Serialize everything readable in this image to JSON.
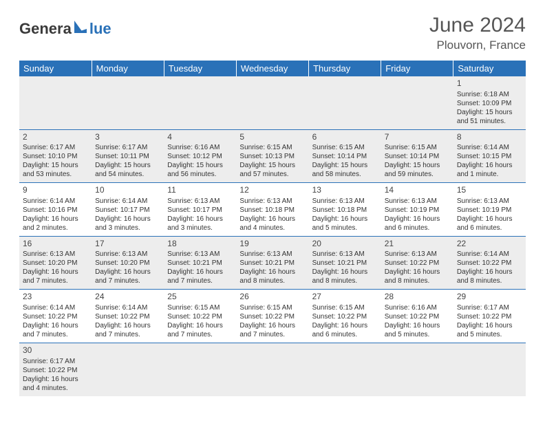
{
  "logo": {
    "textA": "Genera",
    "textB": "lue"
  },
  "header": {
    "title": "June 2024",
    "location": "Plouvorn, France"
  },
  "colors": {
    "headerBar": "#2a71b8",
    "shaded": "#ededed",
    "logoBlue": "#2a71b8",
    "textDark": "#3a3a3a"
  },
  "dayNames": [
    "Sunday",
    "Monday",
    "Tuesday",
    "Wednesday",
    "Thursday",
    "Friday",
    "Saturday"
  ],
  "weeks": [
    [
      null,
      null,
      null,
      null,
      null,
      null,
      {
        "n": "1",
        "sr": "Sunrise: 6:18 AM",
        "ss": "Sunset: 10:09 PM",
        "dl": "Daylight: 15 hours and 51 minutes."
      }
    ],
    [
      {
        "n": "2",
        "sr": "Sunrise: 6:17 AM",
        "ss": "Sunset: 10:10 PM",
        "dl": "Daylight: 15 hours and 53 minutes."
      },
      {
        "n": "3",
        "sr": "Sunrise: 6:17 AM",
        "ss": "Sunset: 10:11 PM",
        "dl": "Daylight: 15 hours and 54 minutes."
      },
      {
        "n": "4",
        "sr": "Sunrise: 6:16 AM",
        "ss": "Sunset: 10:12 PM",
        "dl": "Daylight: 15 hours and 56 minutes."
      },
      {
        "n": "5",
        "sr": "Sunrise: 6:15 AM",
        "ss": "Sunset: 10:13 PM",
        "dl": "Daylight: 15 hours and 57 minutes."
      },
      {
        "n": "6",
        "sr": "Sunrise: 6:15 AM",
        "ss": "Sunset: 10:14 PM",
        "dl": "Daylight: 15 hours and 58 minutes."
      },
      {
        "n": "7",
        "sr": "Sunrise: 6:15 AM",
        "ss": "Sunset: 10:14 PM",
        "dl": "Daylight: 15 hours and 59 minutes."
      },
      {
        "n": "8",
        "sr": "Sunrise: 6:14 AM",
        "ss": "Sunset: 10:15 PM",
        "dl": "Daylight: 16 hours and 1 minute."
      }
    ],
    [
      {
        "n": "9",
        "sr": "Sunrise: 6:14 AM",
        "ss": "Sunset: 10:16 PM",
        "dl": "Daylight: 16 hours and 2 minutes."
      },
      {
        "n": "10",
        "sr": "Sunrise: 6:14 AM",
        "ss": "Sunset: 10:17 PM",
        "dl": "Daylight: 16 hours and 3 minutes."
      },
      {
        "n": "11",
        "sr": "Sunrise: 6:13 AM",
        "ss": "Sunset: 10:17 PM",
        "dl": "Daylight: 16 hours and 3 minutes."
      },
      {
        "n": "12",
        "sr": "Sunrise: 6:13 AM",
        "ss": "Sunset: 10:18 PM",
        "dl": "Daylight: 16 hours and 4 minutes."
      },
      {
        "n": "13",
        "sr": "Sunrise: 6:13 AM",
        "ss": "Sunset: 10:18 PM",
        "dl": "Daylight: 16 hours and 5 minutes."
      },
      {
        "n": "14",
        "sr": "Sunrise: 6:13 AM",
        "ss": "Sunset: 10:19 PM",
        "dl": "Daylight: 16 hours and 6 minutes."
      },
      {
        "n": "15",
        "sr": "Sunrise: 6:13 AM",
        "ss": "Sunset: 10:19 PM",
        "dl": "Daylight: 16 hours and 6 minutes."
      }
    ],
    [
      {
        "n": "16",
        "sr": "Sunrise: 6:13 AM",
        "ss": "Sunset: 10:20 PM",
        "dl": "Daylight: 16 hours and 7 minutes."
      },
      {
        "n": "17",
        "sr": "Sunrise: 6:13 AM",
        "ss": "Sunset: 10:20 PM",
        "dl": "Daylight: 16 hours and 7 minutes."
      },
      {
        "n": "18",
        "sr": "Sunrise: 6:13 AM",
        "ss": "Sunset: 10:21 PM",
        "dl": "Daylight: 16 hours and 7 minutes."
      },
      {
        "n": "19",
        "sr": "Sunrise: 6:13 AM",
        "ss": "Sunset: 10:21 PM",
        "dl": "Daylight: 16 hours and 8 minutes."
      },
      {
        "n": "20",
        "sr": "Sunrise: 6:13 AM",
        "ss": "Sunset: 10:21 PM",
        "dl": "Daylight: 16 hours and 8 minutes."
      },
      {
        "n": "21",
        "sr": "Sunrise: 6:13 AM",
        "ss": "Sunset: 10:22 PM",
        "dl": "Daylight: 16 hours and 8 minutes."
      },
      {
        "n": "22",
        "sr": "Sunrise: 6:14 AM",
        "ss": "Sunset: 10:22 PM",
        "dl": "Daylight: 16 hours and 8 minutes."
      }
    ],
    [
      {
        "n": "23",
        "sr": "Sunrise: 6:14 AM",
        "ss": "Sunset: 10:22 PM",
        "dl": "Daylight: 16 hours and 7 minutes."
      },
      {
        "n": "24",
        "sr": "Sunrise: 6:14 AM",
        "ss": "Sunset: 10:22 PM",
        "dl": "Daylight: 16 hours and 7 minutes."
      },
      {
        "n": "25",
        "sr": "Sunrise: 6:15 AM",
        "ss": "Sunset: 10:22 PM",
        "dl": "Daylight: 16 hours and 7 minutes."
      },
      {
        "n": "26",
        "sr": "Sunrise: 6:15 AM",
        "ss": "Sunset: 10:22 PM",
        "dl": "Daylight: 16 hours and 7 minutes."
      },
      {
        "n": "27",
        "sr": "Sunrise: 6:15 AM",
        "ss": "Sunset: 10:22 PM",
        "dl": "Daylight: 16 hours and 6 minutes."
      },
      {
        "n": "28",
        "sr": "Sunrise: 6:16 AM",
        "ss": "Sunset: 10:22 PM",
        "dl": "Daylight: 16 hours and 5 minutes."
      },
      {
        "n": "29",
        "sr": "Sunrise: 6:17 AM",
        "ss": "Sunset: 10:22 PM",
        "dl": "Daylight: 16 hours and 5 minutes."
      }
    ],
    [
      {
        "n": "30",
        "sr": "Sunrise: 6:17 AM",
        "ss": "Sunset: 10:22 PM",
        "dl": "Daylight: 16 hours and 4 minutes."
      },
      null,
      null,
      null,
      null,
      null,
      null
    ]
  ]
}
